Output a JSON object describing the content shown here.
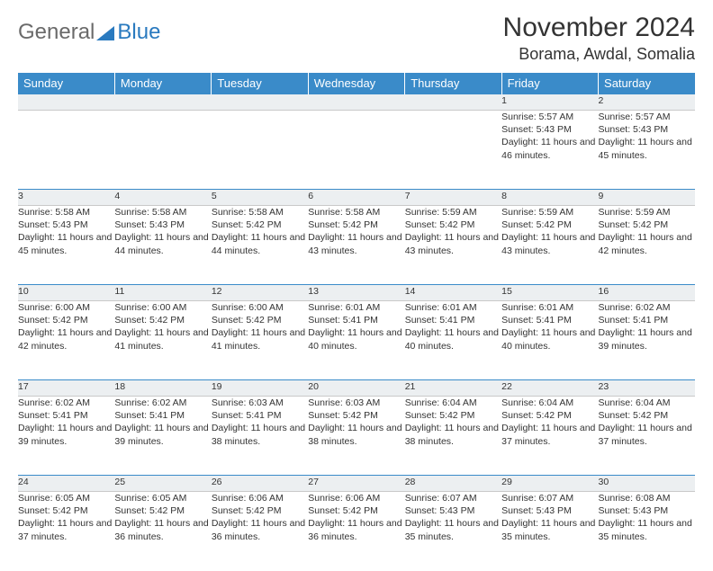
{
  "logo": {
    "part1": "General",
    "part2": "Blue"
  },
  "title": "November 2024",
  "location": "Borama, Awdal, Somalia",
  "colors": {
    "header_bg": "#3a8bc9",
    "header_text": "#ffffff",
    "daynum_bg": "#eceff1",
    "daynum_border_top": "#3a8bc9",
    "text": "#333333",
    "logo_gray": "#6a6a6a",
    "logo_blue": "#2a7abf"
  },
  "dayNames": [
    "Sunday",
    "Monday",
    "Tuesday",
    "Wednesday",
    "Thursday",
    "Friday",
    "Saturday"
  ],
  "weeks": [
    [
      {
        "n": "",
        "lines": []
      },
      {
        "n": "",
        "lines": []
      },
      {
        "n": "",
        "lines": []
      },
      {
        "n": "",
        "lines": []
      },
      {
        "n": "",
        "lines": []
      },
      {
        "n": "1",
        "lines": [
          "Sunrise: 5:57 AM",
          "Sunset: 5:43 PM",
          "Daylight: 11 hours and 46 minutes."
        ]
      },
      {
        "n": "2",
        "lines": [
          "Sunrise: 5:57 AM",
          "Sunset: 5:43 PM",
          "Daylight: 11 hours and 45 minutes."
        ]
      }
    ],
    [
      {
        "n": "3",
        "lines": [
          "Sunrise: 5:58 AM",
          "Sunset: 5:43 PM",
          "Daylight: 11 hours and 45 minutes."
        ]
      },
      {
        "n": "4",
        "lines": [
          "Sunrise: 5:58 AM",
          "Sunset: 5:43 PM",
          "Daylight: 11 hours and 44 minutes."
        ]
      },
      {
        "n": "5",
        "lines": [
          "Sunrise: 5:58 AM",
          "Sunset: 5:42 PM",
          "Daylight: 11 hours and 44 minutes."
        ]
      },
      {
        "n": "6",
        "lines": [
          "Sunrise: 5:58 AM",
          "Sunset: 5:42 PM",
          "Daylight: 11 hours and 43 minutes."
        ]
      },
      {
        "n": "7",
        "lines": [
          "Sunrise: 5:59 AM",
          "Sunset: 5:42 PM",
          "Daylight: 11 hours and 43 minutes."
        ]
      },
      {
        "n": "8",
        "lines": [
          "Sunrise: 5:59 AM",
          "Sunset: 5:42 PM",
          "Daylight: 11 hours and 43 minutes."
        ]
      },
      {
        "n": "9",
        "lines": [
          "Sunrise: 5:59 AM",
          "Sunset: 5:42 PM",
          "Daylight: 11 hours and 42 minutes."
        ]
      }
    ],
    [
      {
        "n": "10",
        "lines": [
          "Sunrise: 6:00 AM",
          "Sunset: 5:42 PM",
          "Daylight: 11 hours and 42 minutes."
        ]
      },
      {
        "n": "11",
        "lines": [
          "Sunrise: 6:00 AM",
          "Sunset: 5:42 PM",
          "Daylight: 11 hours and 41 minutes."
        ]
      },
      {
        "n": "12",
        "lines": [
          "Sunrise: 6:00 AM",
          "Sunset: 5:42 PM",
          "Daylight: 11 hours and 41 minutes."
        ]
      },
      {
        "n": "13",
        "lines": [
          "Sunrise: 6:01 AM",
          "Sunset: 5:41 PM",
          "Daylight: 11 hours and 40 minutes."
        ]
      },
      {
        "n": "14",
        "lines": [
          "Sunrise: 6:01 AM",
          "Sunset: 5:41 PM",
          "Daylight: 11 hours and 40 minutes."
        ]
      },
      {
        "n": "15",
        "lines": [
          "Sunrise: 6:01 AM",
          "Sunset: 5:41 PM",
          "Daylight: 11 hours and 40 minutes."
        ]
      },
      {
        "n": "16",
        "lines": [
          "Sunrise: 6:02 AM",
          "Sunset: 5:41 PM",
          "Daylight: 11 hours and 39 minutes."
        ]
      }
    ],
    [
      {
        "n": "17",
        "lines": [
          "Sunrise: 6:02 AM",
          "Sunset: 5:41 PM",
          "Daylight: 11 hours and 39 minutes."
        ]
      },
      {
        "n": "18",
        "lines": [
          "Sunrise: 6:02 AM",
          "Sunset: 5:41 PM",
          "Daylight: 11 hours and 39 minutes."
        ]
      },
      {
        "n": "19",
        "lines": [
          "Sunrise: 6:03 AM",
          "Sunset: 5:41 PM",
          "Daylight: 11 hours and 38 minutes."
        ]
      },
      {
        "n": "20",
        "lines": [
          "Sunrise: 6:03 AM",
          "Sunset: 5:42 PM",
          "Daylight: 11 hours and 38 minutes."
        ]
      },
      {
        "n": "21",
        "lines": [
          "Sunrise: 6:04 AM",
          "Sunset: 5:42 PM",
          "Daylight: 11 hours and 38 minutes."
        ]
      },
      {
        "n": "22",
        "lines": [
          "Sunrise: 6:04 AM",
          "Sunset: 5:42 PM",
          "Daylight: 11 hours and 37 minutes."
        ]
      },
      {
        "n": "23",
        "lines": [
          "Sunrise: 6:04 AM",
          "Sunset: 5:42 PM",
          "Daylight: 11 hours and 37 minutes."
        ]
      }
    ],
    [
      {
        "n": "24",
        "lines": [
          "Sunrise: 6:05 AM",
          "Sunset: 5:42 PM",
          "Daylight: 11 hours and 37 minutes."
        ]
      },
      {
        "n": "25",
        "lines": [
          "Sunrise: 6:05 AM",
          "Sunset: 5:42 PM",
          "Daylight: 11 hours and 36 minutes."
        ]
      },
      {
        "n": "26",
        "lines": [
          "Sunrise: 6:06 AM",
          "Sunset: 5:42 PM",
          "Daylight: 11 hours and 36 minutes."
        ]
      },
      {
        "n": "27",
        "lines": [
          "Sunrise: 6:06 AM",
          "Sunset: 5:42 PM",
          "Daylight: 11 hours and 36 minutes."
        ]
      },
      {
        "n": "28",
        "lines": [
          "Sunrise: 6:07 AM",
          "Sunset: 5:43 PM",
          "Daylight: 11 hours and 35 minutes."
        ]
      },
      {
        "n": "29",
        "lines": [
          "Sunrise: 6:07 AM",
          "Sunset: 5:43 PM",
          "Daylight: 11 hours and 35 minutes."
        ]
      },
      {
        "n": "30",
        "lines": [
          "Sunrise: 6:08 AM",
          "Sunset: 5:43 PM",
          "Daylight: 11 hours and 35 minutes."
        ]
      }
    ]
  ]
}
